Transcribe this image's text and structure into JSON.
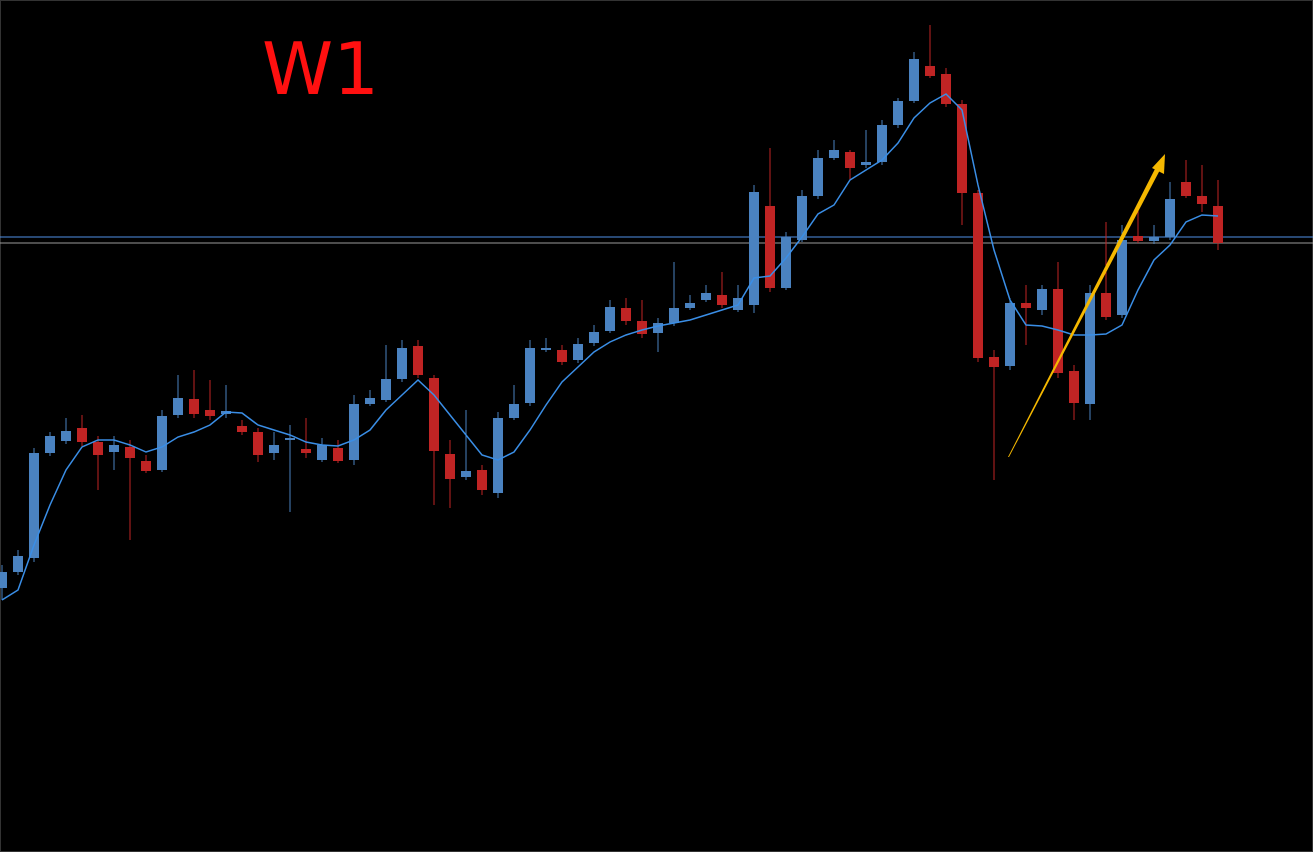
{
  "chart_data": {
    "type": "candlestick",
    "title": "W1",
    "ylim": [
      0,
      852
    ],
    "up_color": "#4a82c0",
    "down_color": "#c02424",
    "open": [
      264,
      280,
      294,
      399,
      411,
      424,
      410,
      400,
      405,
      391,
      382,
      437,
      453,
      442,
      438,
      426,
      420,
      399,
      412,
      403,
      392,
      404,
      392,
      448,
      452,
      473,
      506,
      474,
      398,
      375,
      382,
      359,
      434,
      449,
      502,
      502,
      492,
      509,
      521,
      544,
      531,
      519,
      529,
      544,
      552,
      557,
      542,
      547,
      646,
      564,
      612,
      656,
      694,
      700,
      687,
      690,
      727,
      751,
      786,
      778,
      748,
      659,
      495,
      486,
      549,
      542,
      563,
      481,
      448,
      559,
      537,
      616,
      611,
      615,
      670,
      656,
      646
    ],
    "high": [
      287,
      302,
      404,
      420,
      434,
      437,
      416,
      416,
      412,
      397,
      442,
      477,
      482,
      472,
      467,
      432,
      424,
      420,
      427,
      434,
      414,
      412,
      457,
      462,
      507,
      512,
      512,
      477,
      412,
      442,
      387,
      440,
      467,
      512,
      514,
      507,
      514,
      527,
      552,
      554,
      552,
      534,
      590,
      557,
      567,
      580,
      567,
      667,
      704,
      620,
      662,
      702,
      712,
      702,
      722,
      732,
      754,
      800,
      827,
      784,
      752,
      662,
      502,
      554,
      567,
      567,
      590,
      487,
      567,
      630,
      627,
      642,
      627,
      670,
      692,
      687,
      672
    ],
    "low": [
      252,
      277,
      290,
      396,
      408,
      406,
      362,
      382,
      312,
      379,
      380,
      434,
      434,
      432,
      434,
      417,
      390,
      392,
      340,
      394,
      390,
      389,
      387,
      446,
      450,
      470,
      474,
      347,
      344,
      372,
      357,
      354,
      432,
      446,
      500,
      487,
      489,
      506,
      519,
      527,
      514,
      500,
      526,
      542,
      550,
      544,
      540,
      539,
      560,
      562,
      610,
      653,
      692,
      672,
      684,
      687,
      724,
      749,
      774,
      745,
      627,
      490,
      372,
      482,
      507,
      537,
      474,
      432,
      432,
      532,
      534,
      609,
      608,
      612,
      654,
      640,
      602
    ],
    "close": [
      280,
      296,
      399,
      416,
      421,
      410,
      397,
      407,
      394,
      381,
      436,
      454,
      438,
      436,
      441,
      420,
      397,
      407,
      414,
      399,
      407,
      391,
      448,
      454,
      473,
      504,
      477,
      401,
      373,
      381,
      362,
      434,
      448,
      504,
      504,
      490,
      508,
      520,
      545,
      531,
      518,
      529,
      544,
      549,
      559,
      547,
      554,
      660,
      564,
      615,
      656,
      694,
      702,
      684,
      690,
      727,
      751,
      793,
      776,
      748,
      659,
      494,
      485,
      549,
      544,
      563,
      479,
      449,
      559,
      535,
      612,
      611,
      615,
      653,
      656,
      648,
      609
    ],
    "ma": {
      "color": "#3a8ee6",
      "values": [
        252,
        262,
        307,
        347,
        382,
        405,
        412,
        412,
        407,
        400,
        405,
        415,
        420,
        427,
        440,
        439,
        427,
        422,
        417,
        410,
        407,
        406,
        412,
        422,
        442,
        457,
        472,
        457,
        437,
        417,
        397,
        392,
        400,
        422,
        447,
        470,
        485,
        500,
        510,
        517,
        522,
        526,
        529,
        532,
        537,
        542,
        547,
        574,
        576,
        594,
        615,
        638,
        647,
        672,
        682,
        692,
        709,
        734,
        749,
        758,
        742,
        667,
        602,
        552,
        527,
        526,
        522,
        517,
        517,
        518,
        527,
        562,
        592,
        607,
        630,
        637,
        636
      ]
    },
    "hlines": [
      {
        "value": 615,
        "color": "#4f8fe6"
      },
      {
        "value": 609,
        "color": "#9a9a9a"
      }
    ]
  }
}
